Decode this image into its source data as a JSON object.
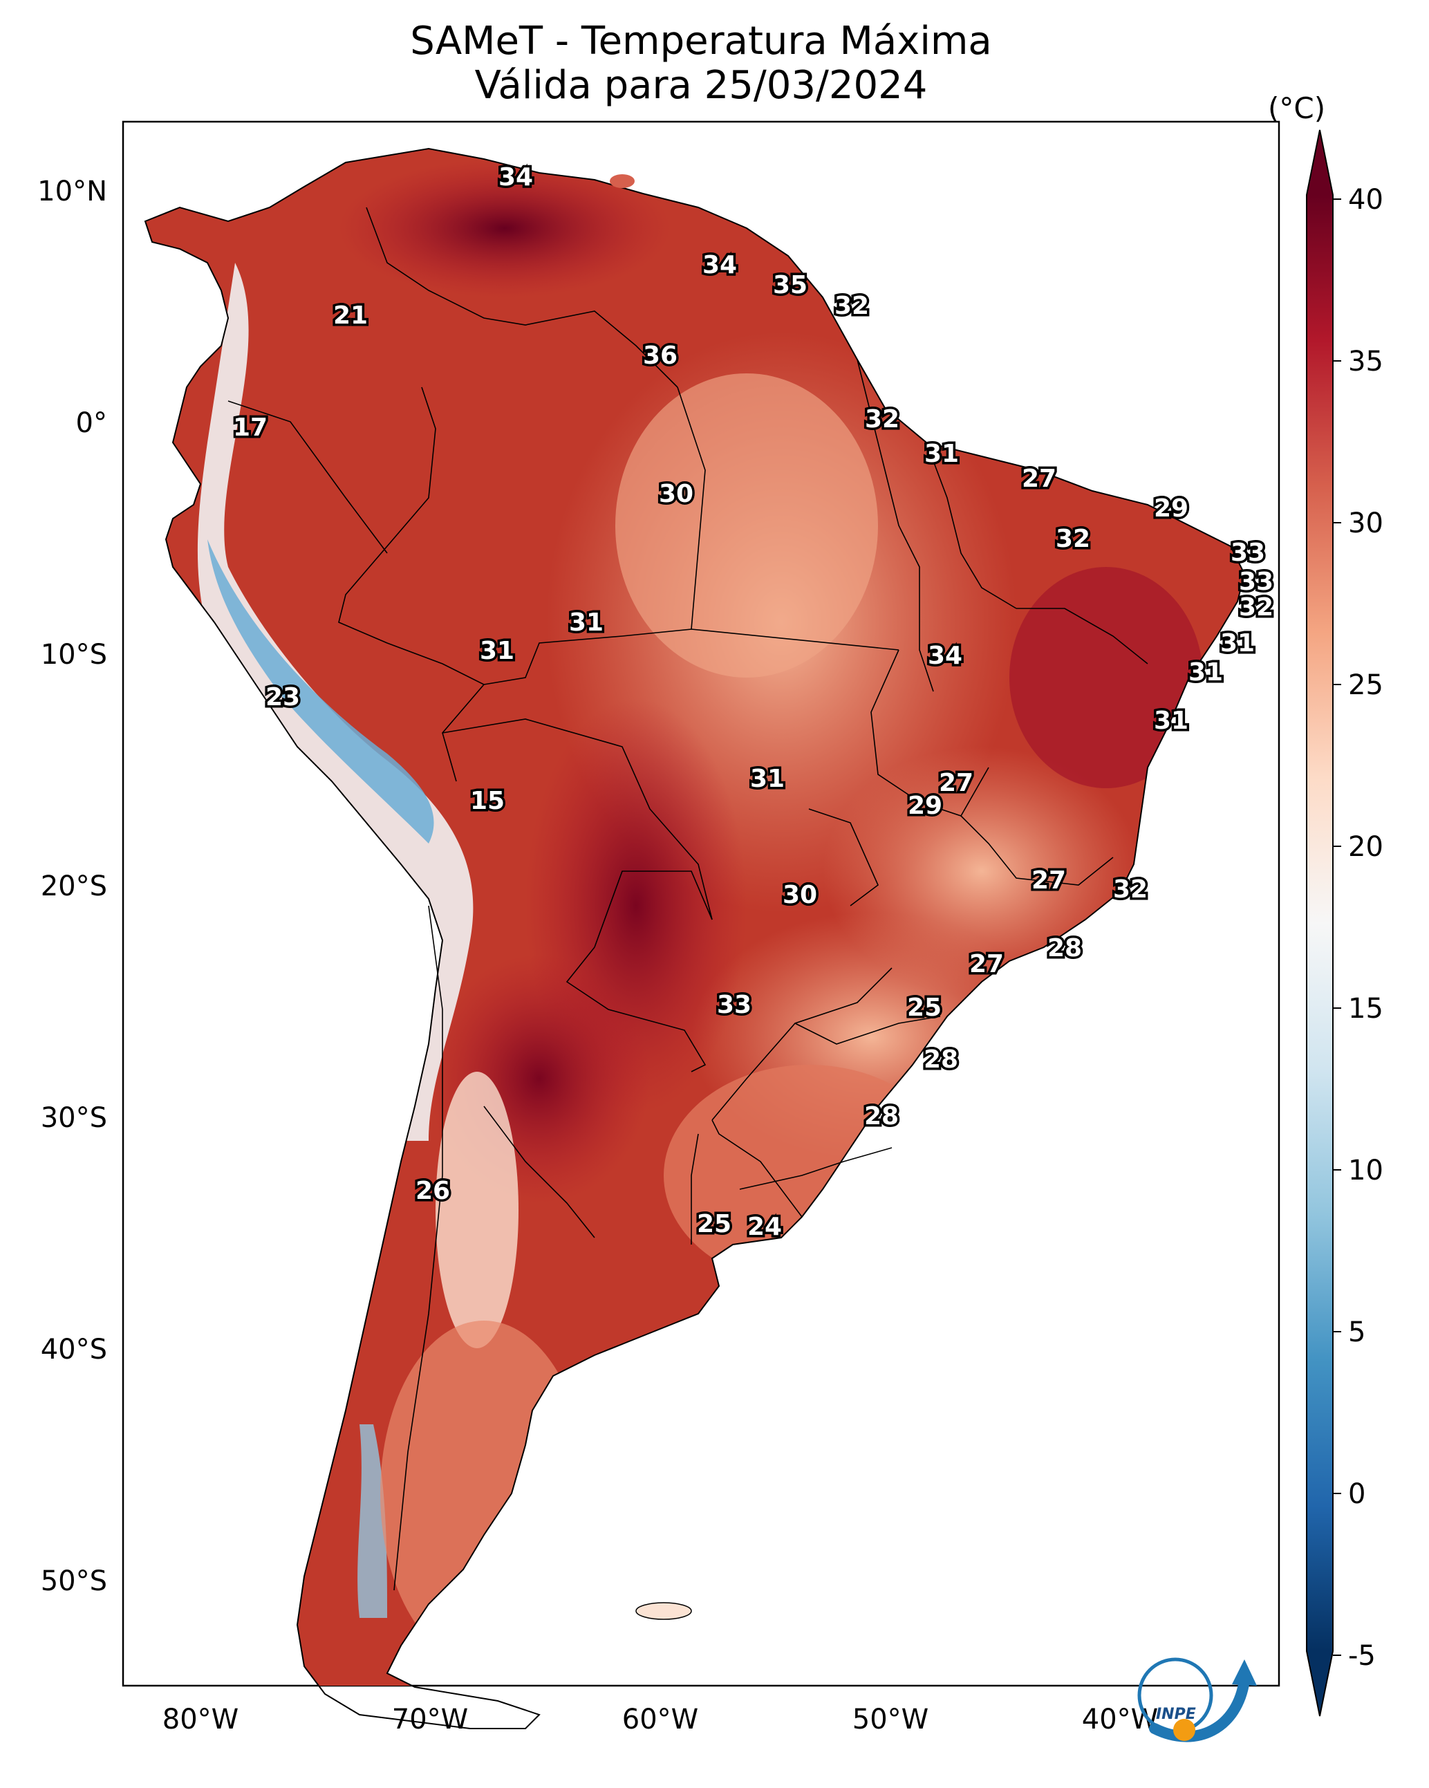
{
  "title": {
    "line1": "SAMeT - Temperatura Máxima",
    "line2": "Válida para 25/03/2024"
  },
  "axes": {
    "lat_labels": [
      "10°N",
      "0°",
      "10°S",
      "20°S",
      "30°S",
      "40°S",
      "50°S"
    ],
    "lon_labels": [
      "80°W",
      "70°W",
      "60°W",
      "50°W",
      "40°W"
    ]
  },
  "colorbar": {
    "unit": "(°C)",
    "ticks": [
      "40",
      "35",
      "30",
      "25",
      "20",
      "15",
      "10",
      "5",
      "0",
      "-5"
    ],
    "range": [
      -5,
      40
    ],
    "colors": [
      "#053061",
      "#2166ac",
      "#4393c3",
      "#92c5de",
      "#d1e5f0",
      "#f7f7f7",
      "#fddbc7",
      "#f4a582",
      "#d6604d",
      "#b2182b",
      "#67001f"
    ]
  },
  "stations": [
    {
      "value": "34"
    },
    {
      "value": "34"
    },
    {
      "value": "35"
    },
    {
      "value": "32"
    },
    {
      "value": "21"
    },
    {
      "value": "36"
    },
    {
      "value": "17"
    },
    {
      "value": "32"
    },
    {
      "value": "31"
    },
    {
      "value": "30"
    },
    {
      "value": "27"
    },
    {
      "value": "29"
    },
    {
      "value": "32"
    },
    {
      "value": "33"
    },
    {
      "value": "33"
    },
    {
      "value": "32"
    },
    {
      "value": "31"
    },
    {
      "value": "31"
    },
    {
      "value": "31"
    },
    {
      "value": "34"
    },
    {
      "value": "31"
    },
    {
      "value": "31"
    },
    {
      "value": "23"
    },
    {
      "value": "31"
    },
    {
      "value": "27"
    },
    {
      "value": "30"
    },
    {
      "value": "29"
    },
    {
      "value": "15"
    },
    {
      "value": "27"
    },
    {
      "value": "32"
    },
    {
      "value": "30"
    },
    {
      "value": "28"
    },
    {
      "value": "27"
    },
    {
      "value": "33"
    },
    {
      "value": "25"
    },
    {
      "value": "28"
    },
    {
      "value": "28"
    },
    {
      "value": "26"
    },
    {
      "value": "25"
    },
    {
      "value": "24"
    }
  ],
  "logo": {
    "text": "INPE",
    "icon": "inpe-logo-icon"
  }
}
